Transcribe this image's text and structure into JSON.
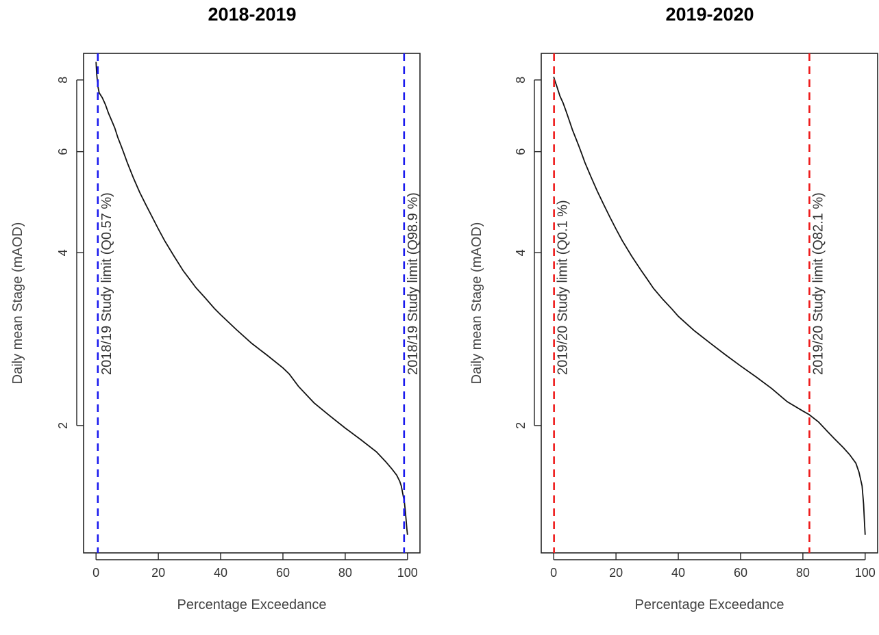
{
  "chart_data": [
    {
      "type": "line",
      "title": "2018-2019",
      "xlabel": "Percentage Exceedance",
      "ylabel": "Daily mean Stage (mAOD)",
      "xlim": [
        -4,
        104
      ],
      "ylim": [
        1.2,
        8.9
      ],
      "ylog": true,
      "xticks": [
        0,
        20,
        40,
        60,
        80,
        100
      ],
      "yticks": [
        2,
        4,
        6,
        8
      ],
      "series": [
        {
          "x": [
            0,
            0.2,
            0.6,
            1,
            2,
            3,
            4,
            5,
            6,
            7,
            8,
            9,
            10,
            12,
            14,
            16,
            18,
            20,
            22,
            25,
            28,
            30,
            32,
            35,
            38,
            40,
            45,
            50,
            55,
            60,
            62,
            65,
            70,
            75,
            80,
            85,
            90,
            93,
            95,
            96.5,
            97.5,
            98,
            98.5,
            99,
            99.3,
            99.6,
            99.8,
            100
          ],
          "y": [
            8.6,
            8.2,
            7.8,
            7.6,
            7.45,
            7.25,
            7.0,
            6.8,
            6.6,
            6.35,
            6.15,
            5.95,
            5.75,
            5.4,
            5.1,
            4.85,
            4.62,
            4.4,
            4.2,
            3.95,
            3.72,
            3.6,
            3.48,
            3.34,
            3.2,
            3.12,
            2.94,
            2.78,
            2.65,
            2.52,
            2.46,
            2.34,
            2.19,
            2.08,
            1.98,
            1.89,
            1.8,
            1.73,
            1.68,
            1.64,
            1.6,
            1.57,
            1.52,
            1.47,
            1.42,
            1.36,
            1.32,
            1.29
          ]
        }
      ],
      "limit_lines": [
        {
          "x": 0.57,
          "label": "2018/19 Study limit (Q0.57 %)",
          "color": "#1a1aee"
        },
        {
          "x": 98.9,
          "label": "2018/19 Study limit (Q98.9 %)",
          "color": "#1a1aee"
        }
      ]
    },
    {
      "type": "line",
      "title": "2019-2020",
      "xlabel": "Percentage Exceedance",
      "ylabel": "Daily mean Stage (mAOD)",
      "xlim": [
        -4,
        104
      ],
      "ylim": [
        1.2,
        8.9
      ],
      "ylog": true,
      "xticks": [
        0,
        20,
        40,
        60,
        80,
        100
      ],
      "yticks": [
        2,
        4,
        6,
        8
      ],
      "series": [
        {
          "x": [
            0,
            0.3,
            1,
            2,
            3,
            4,
            5,
            6,
            7,
            8,
            9,
            10,
            12,
            14,
            16,
            18,
            20,
            22,
            25,
            28,
            30,
            32,
            35,
            38,
            40,
            45,
            50,
            55,
            60,
            65,
            70,
            75,
            80,
            82,
            85,
            88,
            90,
            93,
            95,
            97,
            98,
            99,
            99.5,
            99.8,
            100
          ],
          "y": [
            8.1,
            8.0,
            7.8,
            7.5,
            7.3,
            7.05,
            6.8,
            6.55,
            6.35,
            6.15,
            5.95,
            5.75,
            5.42,
            5.12,
            4.86,
            4.62,
            4.4,
            4.2,
            3.95,
            3.73,
            3.6,
            3.47,
            3.32,
            3.19,
            3.1,
            2.93,
            2.79,
            2.66,
            2.54,
            2.43,
            2.32,
            2.2,
            2.12,
            2.09,
            2.03,
            1.95,
            1.9,
            1.83,
            1.78,
            1.72,
            1.66,
            1.57,
            1.46,
            1.35,
            1.29
          ]
        }
      ],
      "limit_lines": [
        {
          "x": 0.1,
          "label": "2019/20 Study limit (Q0.1 %)",
          "color": "#ee1a1a"
        },
        {
          "x": 82.1,
          "label": "2019/20 Study limit (Q82.1 %)",
          "color": "#ee1a1a"
        }
      ]
    }
  ]
}
